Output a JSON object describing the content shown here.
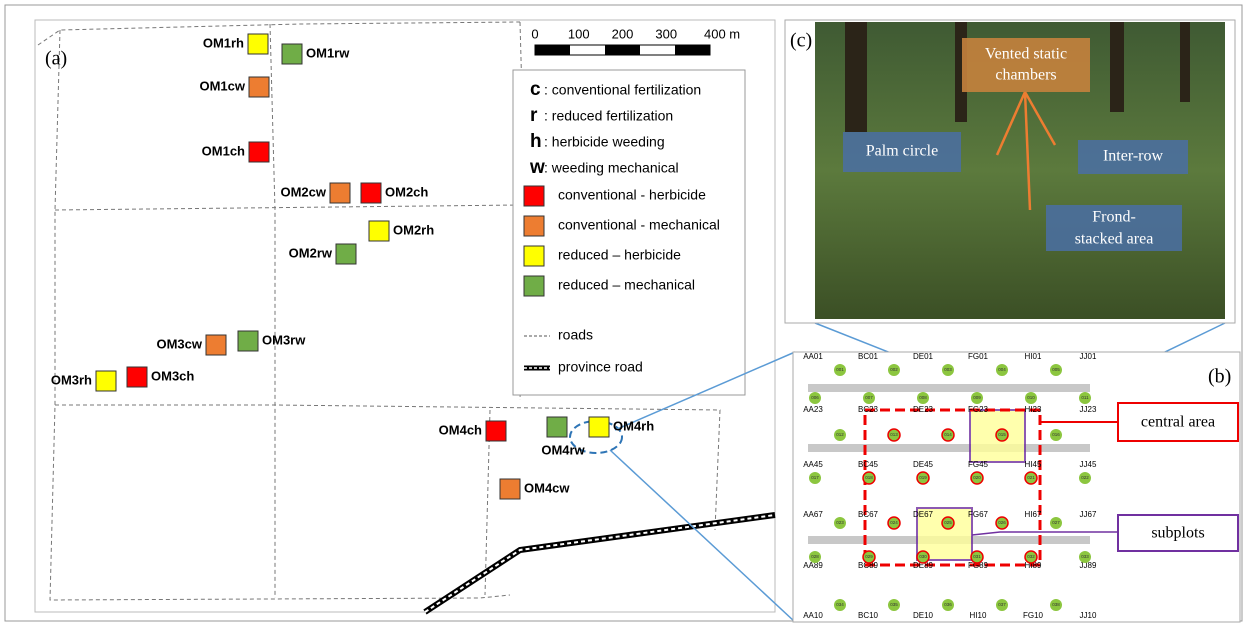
{
  "panel_a": {
    "label": "(a)",
    "scale_bar": {
      "ticks": [
        "0",
        "100",
        "200",
        "300",
        "400 m"
      ]
    },
    "plots": [
      {
        "label": "OM1rh",
        "kind": 2
      },
      {
        "label": "OM1rw",
        "kind": 3
      },
      {
        "label": "OM1cw",
        "kind": 1
      },
      {
        "label": "OM1ch",
        "kind": 0
      },
      {
        "label": "OM2cw",
        "kind": 1
      },
      {
        "label": "OM2ch",
        "kind": 0
      },
      {
        "label": "OM2rh",
        "kind": 2
      },
      {
        "label": "OM2rw",
        "kind": 3
      },
      {
        "label": "OM3cw",
        "kind": 1
      },
      {
        "label": "OM3rw",
        "kind": 3
      },
      {
        "label": "OM3rh",
        "kind": 2
      },
      {
        "label": "OM3ch",
        "kind": 0
      },
      {
        "label": "OM4ch",
        "kind": 0
      },
      {
        "label": "OM4rw",
        "kind": 3
      },
      {
        "label": "OM4rh",
        "kind": 2
      },
      {
        "label": "OM4cw",
        "kind": 1
      }
    ],
    "legend": {
      "abbreviations": [
        {
          "letter": "c",
          "text": ": conventional fertilization"
        },
        {
          "letter": "r",
          "text": ": reduced fertilization"
        },
        {
          "letter": "h",
          "text": ": herbicide weeding"
        },
        {
          "letter": "w",
          "text": ": weeding mechanical"
        }
      ],
      "treatments": [
        {
          "text": "conventional - herbicide",
          "color": "#ff0000"
        },
        {
          "text": "conventional - mechanical",
          "color": "#ed7d31"
        },
        {
          "text": "reduced – herbicide",
          "color": "#ffff00"
        },
        {
          "text": "reduced – mechanical",
          "color": "#70ad47"
        }
      ],
      "roads": "roads",
      "province_road": "province road"
    }
  },
  "panel_c": {
    "label": "(c)",
    "chambers": [
      "Vented static",
      "chambers"
    ],
    "palm_circle": "Palm circle",
    "inter_row": "Inter-row",
    "frond": [
      "Frond-",
      "stacked area"
    ]
  },
  "panel_b": {
    "label": "(b)",
    "central_area": "central area",
    "subplots": "subplots",
    "grid_rows": [
      [
        "AA01",
        "BC01",
        "DE01",
        "FG01",
        "HI01",
        "JJ01"
      ],
      [
        "AA23",
        "BC23",
        "DE23",
        "FG23",
        "HI23",
        "JJ23"
      ],
      [
        "AA45",
        "BC45",
        "DE45",
        "FG45",
        "HI45",
        "JJ45"
      ],
      [
        "AA67",
        "BC67",
        "DE67",
        "FG67",
        "HI67",
        "JJ67"
      ],
      [
        "AA89",
        "BC89",
        "DE89",
        "FG89",
        "HI89",
        "JJ89"
      ],
      [
        "AA10",
        "BC10",
        "DE10",
        "HI10",
        "FG10",
        "JJ10"
      ]
    ],
    "circle_rows": [
      [
        "001",
        "002",
        "003",
        "004",
        "005"
      ],
      [
        "006",
        "007",
        "008",
        "009",
        "010",
        "011"
      ],
      [
        "012",
        "013",
        "014",
        "015",
        "016"
      ],
      [
        "017",
        "018",
        "019",
        "020",
        "021",
        "022"
      ],
      [
        "023",
        "024",
        "025",
        "026",
        "027"
      ],
      [
        "028",
        "029",
        "030",
        "031",
        "032",
        "033"
      ],
      [
        "034",
        "035",
        "036",
        "037",
        "038"
      ]
    ]
  }
}
